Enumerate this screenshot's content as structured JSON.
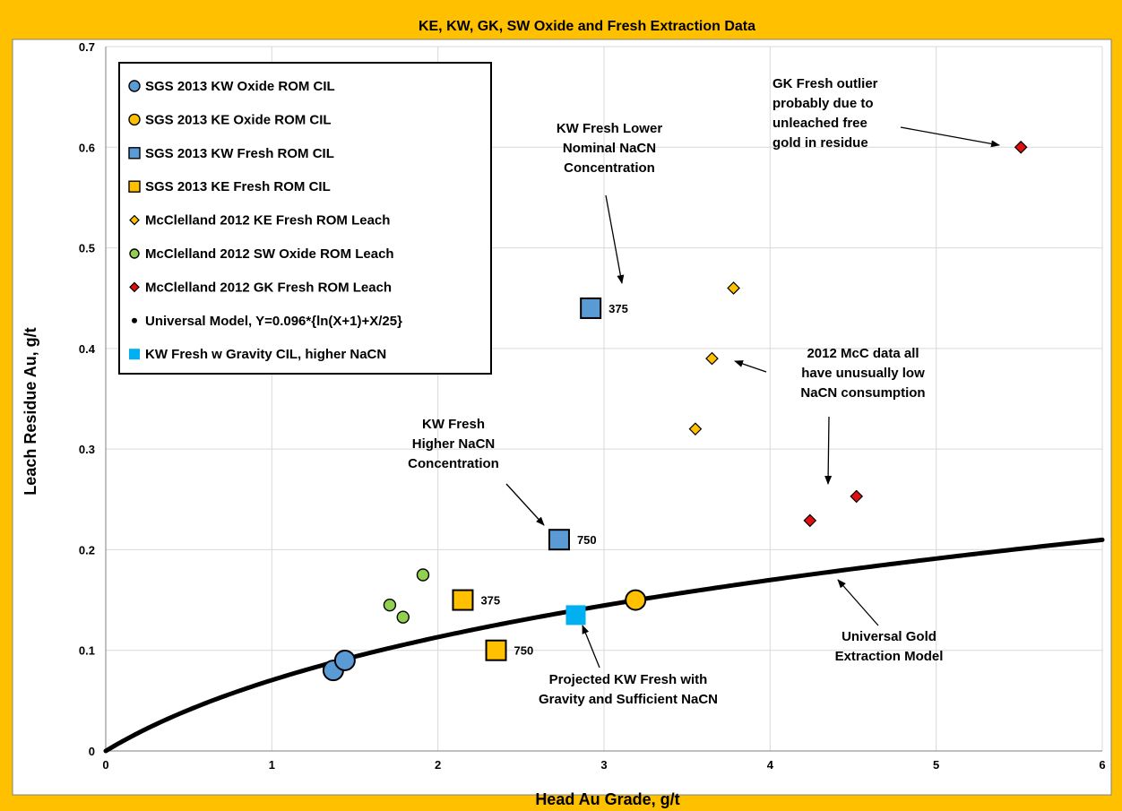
{
  "chart_data": {
    "type": "scatter",
    "title": "KE, KW, GK, SW Oxide and Fresh Extraction Data",
    "xlabel": "Head Au Grade, g/t",
    "ylabel": "Leach Residue Au, g/t",
    "xlim": [
      0,
      6
    ],
    "ylim": [
      0,
      0.7
    ],
    "x_ticks": [
      "0",
      "1",
      "2",
      "3",
      "4",
      "5",
      "6"
    ],
    "y_ticks": [
      "0",
      "0.1",
      "0.2",
      "0.3",
      "0.4",
      "0.5",
      "0.6",
      "0.7"
    ],
    "grid": "major",
    "legend_position": "top-left",
    "series": [
      {
        "name": "SGS 2013 KW Oxide ROM CIL",
        "marker": "circle",
        "color": "#5b9bd5",
        "points": [
          {
            "x": 1.37,
            "y": 0.08
          },
          {
            "x": 1.44,
            "y": 0.09
          }
        ]
      },
      {
        "name": "SGS 2013 KE Oxide ROM CIL",
        "marker": "circle",
        "color": "#ffc000",
        "points": [
          {
            "x": 3.19,
            "y": 0.15
          }
        ]
      },
      {
        "name": "SGS 2013 KW Fresh ROM CIL",
        "marker": "square",
        "color": "#5b9bd5",
        "points": [
          {
            "x": 2.92,
            "y": 0.44,
            "label": "375"
          },
          {
            "x": 2.73,
            "y": 0.21,
            "label": "750"
          }
        ]
      },
      {
        "name": "SGS 2013 KE Fresh ROM CIL",
        "marker": "square",
        "color": "#ffc000",
        "points": [
          {
            "x": 2.15,
            "y": 0.15,
            "label": "375"
          },
          {
            "x": 2.35,
            "y": 0.1,
            "label": "750"
          }
        ]
      },
      {
        "name": "McClelland 2012 KE Fresh ROM Leach",
        "marker": "diamond",
        "color": "#ffc000",
        "points": [
          {
            "x": 3.78,
            "y": 0.46
          },
          {
            "x": 3.65,
            "y": 0.39
          },
          {
            "x": 3.55,
            "y": 0.32
          }
        ]
      },
      {
        "name": "McClelland 2012 SW Oxide ROM Leach",
        "marker": "circle-small",
        "color": "#92d050",
        "points": [
          {
            "x": 1.91,
            "y": 0.175
          },
          {
            "x": 1.71,
            "y": 0.145
          },
          {
            "x": 1.79,
            "y": 0.133
          }
        ]
      },
      {
        "name": "McClelland 2012 GK Fresh ROM Leach",
        "marker": "diamond",
        "color": "#e01010",
        "points": [
          {
            "x": 5.51,
            "y": 0.6
          },
          {
            "x": 4.52,
            "y": 0.253
          },
          {
            "x": 4.24,
            "y": 0.229
          }
        ]
      },
      {
        "name": "Universal Model, Y=0.096*{ln(X+1)+X/25}",
        "marker": "line",
        "color": "#000000",
        "formula": "0.096*(ln(x+1)+x/25)",
        "x_range": [
          0,
          6
        ]
      },
      {
        "name": "KW Fresh w Gravity CIL, higher NaCN",
        "marker": "square",
        "color": "#00b0f0",
        "points": [
          {
            "x": 2.83,
            "y": 0.135
          }
        ]
      }
    ],
    "annotations": [
      {
        "lines": [
          "GK Fresh outlier",
          "probably due to",
          "unleached free",
          "gold in residue"
        ],
        "target": {
          "x": 5.51,
          "y": 0.6
        }
      },
      {
        "lines": [
          "KW Fresh Lower",
          "Nominal NaCN",
          "Concentration"
        ],
        "target": {
          "x": 2.92,
          "y": 0.44
        }
      },
      {
        "lines": [
          "KW Fresh",
          "Higher NaCN",
          "Concentration"
        ],
        "target": {
          "x": 2.73,
          "y": 0.21
        }
      },
      {
        "lines": [
          "2012 McC data all",
          "have unusually low",
          "NaCN consumption"
        ],
        "target": {
          "x": 3.65,
          "y": 0.39
        },
        "target2": {
          "x": 4.24,
          "y": 0.229
        }
      },
      {
        "lines": [
          "Universal Gold",
          "Extraction Model"
        ],
        "target": {
          "x": 4.3,
          "y": 0.183
        }
      },
      {
        "lines": [
          "Projected KW Fresh with",
          "Gravity and Sufficient NaCN"
        ],
        "target": {
          "x": 2.83,
          "y": 0.135
        }
      }
    ]
  }
}
